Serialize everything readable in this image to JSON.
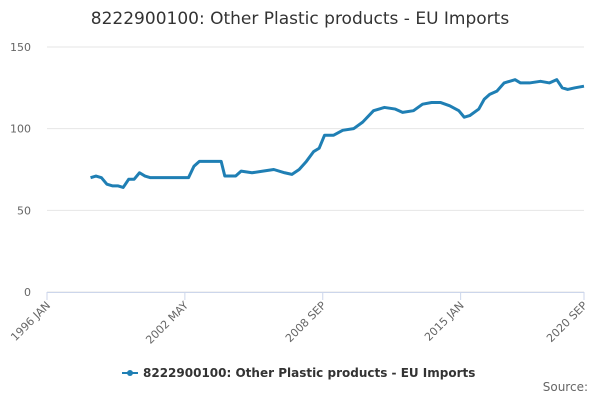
{
  "chart_data": {
    "type": "line",
    "title": "8222900100: Other Plastic products - EU Imports",
    "source": "Source:",
    "x": [
      "1998 JAN",
      "1998 APR",
      "1998 JUL",
      "1998 OCT",
      "1999 JAN",
      "1999 APR",
      "1999 JUL",
      "1999 OCT",
      "2000 JAN",
      "2000 APR",
      "2000 JUL",
      "2000 OCT",
      "2001 JAN",
      "2001 JUL",
      "2002 JAN",
      "2002 JUL",
      "2002 OCT",
      "2003 JAN",
      "2003 JUL",
      "2004 JAN",
      "2004 MAR",
      "2004 SEP",
      "2004 DEC",
      "2005 JUN",
      "2005 DEC",
      "2006 JUN",
      "2006 DEC",
      "2007 APR",
      "2007 AUG",
      "2007 DEC",
      "2008 APR",
      "2008 JUL",
      "2008 OCT",
      "2009 MAR",
      "2009 AUG",
      "2010 FEB",
      "2010 JUL",
      "2011 JAN",
      "2011 JUL",
      "2012 JAN",
      "2012 MAY",
      "2012 NOV",
      "2013 APR",
      "2013 SEP",
      "2014 FEB",
      "2014 JUL",
      "2014 DEC",
      "2015 MAR",
      "2015 JUN",
      "2015 NOV",
      "2016 FEB",
      "2016 MAY",
      "2016 SEP",
      "2017 JAN",
      "2017 JUL",
      "2017 OCT",
      "2018 MAR",
      "2018 SEP",
      "2019 FEB",
      "2019 JUN",
      "2019 SEP",
      "2019 DEC",
      "2020 APR",
      "2020 SEP"
    ],
    "series": [
      {
        "name": "8222900100: Other Plastic products - EU Imports",
        "color": "#1f7fb4",
        "values": [
          70,
          71,
          70,
          66,
          65,
          65,
          64,
          69,
          69,
          73,
          71,
          70,
          70,
          70,
          70,
          70,
          77,
          80,
          80,
          80,
          71,
          71,
          74,
          73,
          74,
          75,
          73,
          72,
          75,
          80,
          86,
          88,
          96,
          96,
          99,
          100,
          104,
          111,
          113,
          112,
          110,
          111,
          115,
          116,
          116,
          114,
          111,
          107,
          108,
          112,
          118,
          121,
          123,
          128,
          130,
          128,
          128,
          129,
          128,
          130,
          125,
          124,
          125,
          126
        ]
      }
    ],
    "xlim": [
      "1996 JAN",
      "2020 SEP"
    ],
    "xticks": [
      "1996 JAN",
      "2002 MAY",
      "2008 SEP",
      "2015 JAN",
      "2020 SEP"
    ],
    "ylim": [
      0,
      150
    ],
    "yticks": [
      0,
      50,
      100,
      150
    ],
    "grid": true,
    "legend": "bottom"
  }
}
